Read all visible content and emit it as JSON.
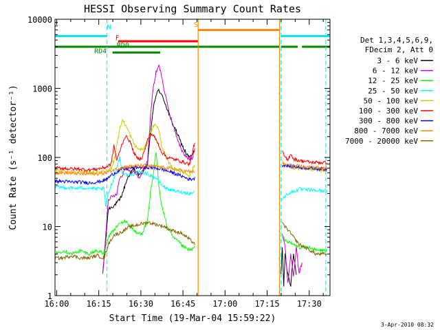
{
  "chart_data": {
    "type": "line",
    "title": "HESSI Observing Summary Count Rates",
    "xlabel": "Start Time (19-Mar-04 15:59:22)",
    "ylabel": "Count Rate (s⁻¹ detector⁻¹)",
    "ylog": true,
    "ylim": [
      1,
      10000
    ],
    "xlim_minutes": [
      0,
      98
    ],
    "x_ticks": [
      "16:00",
      "16:15",
      "16:30",
      "16:45",
      "17:00",
      "17:15",
      "17:30"
    ],
    "y_ticks": [
      "1",
      "10",
      "100",
      "1000",
      "10000"
    ],
    "legend_header": [
      "Det 1,3,4,5,6,9,",
      "FDecim 2, Att 0"
    ],
    "legend_position": "right",
    "date_stamp": "3-Apr-2010 08:32",
    "series": [
      {
        "name": "3 - 6 keV",
        "color": "#000000",
        "x": [
          17,
          19,
          21,
          22,
          23,
          24,
          25,
          26,
          27,
          28,
          29,
          30,
          31,
          32,
          33,
          34,
          35,
          36,
          37,
          38,
          39,
          40,
          41,
          42,
          43,
          44,
          45,
          46,
          47,
          48,
          49,
          50,
          80.5,
          81,
          81.5,
          82,
          83,
          84,
          85,
          86
        ],
        "y": [
          2,
          18,
          20,
          22,
          24,
          30,
          40,
          52,
          60,
          68,
          62,
          55,
          60,
          70,
          80,
          220,
          500,
          800,
          950,
          800,
          650,
          500,
          380,
          300,
          250,
          200,
          160,
          130,
          110,
          100,
          110,
          130,
          2,
          5,
          1.3,
          4,
          2,
          1.4,
          4,
          2
        ]
      },
      {
        "name": "6 - 12 keV",
        "color": "#cc00cc",
        "x": [
          17,
          19,
          21,
          22,
          23,
          24,
          25,
          26,
          27,
          28,
          29,
          30,
          31,
          32,
          33,
          34,
          35,
          36,
          37,
          38,
          39,
          40,
          41,
          42,
          43,
          44,
          45,
          46,
          47,
          48,
          49,
          50,
          81,
          82,
          83,
          84,
          85,
          86,
          87,
          88
        ],
        "y": [
          2,
          25,
          28,
          30,
          50,
          55,
          72,
          65,
          60,
          62,
          58,
          50,
          60,
          70,
          90,
          400,
          1000,
          1700,
          2200,
          1500,
          900,
          600,
          400,
          300,
          220,
          170,
          130,
          110,
          100,
          95,
          100,
          150,
          8,
          5,
          1.5,
          4,
          2,
          5,
          2,
          3
        ]
      },
      {
        "name": "12 - 25 keV",
        "color": "#00ff00",
        "x": [
          0,
          3,
          6,
          9,
          12,
          15,
          17.5,
          19,
          21,
          23,
          25,
          27,
          29,
          31,
          33,
          34,
          35,
          36,
          37,
          38,
          40,
          42,
          44,
          46,
          48,
          50,
          81,
          83,
          85,
          87,
          89,
          91,
          93,
          95,
          97
        ],
        "y": [
          4,
          4.5,
          4,
          4.5,
          4,
          4.5,
          4,
          7,
          9,
          11,
          12,
          10,
          8,
          8,
          12,
          30,
          55,
          120,
          40,
          20,
          10,
          7,
          6,
          5,
          4.5,
          5,
          7,
          6,
          5.5,
          5,
          5,
          5,
          4.5,
          4.5,
          4.5
        ]
      },
      {
        "name": "25 - 50 keV",
        "color": "#00ffff",
        "x": [
          0,
          3,
          6,
          9,
          12,
          15,
          17.5,
          18,
          19,
          20,
          21,
          22,
          23,
          24,
          26,
          28,
          30,
          32,
          34,
          35,
          36,
          37,
          38,
          40,
          42,
          44,
          46,
          48,
          50,
          81,
          83,
          85,
          87,
          89,
          91,
          93,
          95,
          97
        ],
        "y": [
          37,
          37,
          36,
          36,
          36,
          35,
          35,
          20,
          30,
          40,
          50,
          70,
          100,
          60,
          55,
          58,
          60,
          60,
          55,
          52,
          50,
          45,
          40,
          35,
          33,
          32,
          31,
          30,
          32,
          25,
          30,
          32,
          35,
          34,
          34,
          33,
          33,
          33
        ]
      },
      {
        "name": "50 - 100 keV",
        "color": "#cccc00",
        "x": [
          0,
          3,
          6,
          9,
          12,
          15,
          18,
          20,
          21,
          22,
          23,
          24,
          25,
          26,
          27,
          28,
          29,
          30,
          31,
          32,
          33,
          34,
          35,
          36,
          37,
          38,
          40,
          42,
          44,
          46,
          48,
          50,
          81,
          82,
          83,
          85,
          87,
          89,
          91,
          93,
          95,
          97
        ],
        "y": [
          65,
          64,
          62,
          62,
          60,
          60,
          62,
          70,
          90,
          150,
          250,
          350,
          300,
          250,
          200,
          160,
          140,
          130,
          130,
          140,
          170,
          230,
          280,
          300,
          250,
          150,
          90,
          70,
          65,
          60,
          55,
          80,
          90,
          80,
          75,
          70,
          70,
          68,
          67,
          66,
          65,
          65
        ]
      },
      {
        "name": "100 - 300 keV",
        "color": "#ff0000",
        "x": [
          0,
          3,
          6,
          9,
          12,
          15,
          18,
          20,
          21,
          22,
          23,
          24,
          25,
          26,
          27,
          28,
          29,
          30,
          31,
          32,
          33,
          34,
          35,
          36,
          37,
          38,
          40,
          42,
          44,
          46,
          48,
          50,
          81,
          82,
          83,
          84,
          85,
          87,
          89,
          91,
          93,
          95,
          97
        ],
        "y": [
          70,
          70,
          68,
          68,
          66,
          68,
          72,
          80,
          150,
          90,
          120,
          160,
          200,
          190,
          160,
          120,
          100,
          95,
          100,
          130,
          180,
          220,
          210,
          180,
          150,
          120,
          100,
          95,
          90,
          85,
          80,
          180,
          120,
          100,
          90,
          115,
          95,
          90,
          88,
          85,
          85,
          84,
          84
        ]
      },
      {
        "name": "300 - 800 keV",
        "color": "#0000ff",
        "x": [
          0,
          3,
          6,
          9,
          12,
          15,
          18,
          20,
          22,
          24,
          26,
          28,
          30,
          32,
          34,
          36,
          38,
          40,
          42,
          44,
          46,
          48,
          50,
          81,
          83,
          85,
          87,
          89,
          91,
          93,
          95,
          97
        ],
        "y": [
          45,
          45,
          44,
          44,
          43,
          44,
          47,
          55,
          62,
          68,
          70,
          71,
          72,
          72,
          72,
          70,
          68,
          64,
          60,
          56,
          52,
          48,
          50,
          78,
          76,
          74,
          72,
          71,
          70,
          69,
          68,
          68
        ]
      },
      {
        "name": "800 - 7000 keV",
        "color": "#ff8800",
        "x": [
          0,
          3,
          6,
          9,
          12,
          15,
          18,
          20,
          22,
          24,
          26,
          28,
          30,
          32,
          34,
          36,
          38,
          40,
          42,
          44,
          46,
          48,
          50,
          81,
          83,
          85,
          87,
          89,
          91,
          93,
          95,
          97
        ],
        "y": [
          60,
          60,
          59,
          58,
          58,
          58,
          60,
          64,
          68,
          72,
          74,
          75,
          76,
          76,
          75,
          74,
          72,
          70,
          68,
          66,
          64,
          62,
          63,
          80,
          78,
          76,
          74,
          73,
          72,
          71,
          70,
          70
        ]
      },
      {
        "name": "7000 - 20000 keV",
        "color": "#886600",
        "x": [
          0,
          3,
          6,
          9,
          12,
          15,
          17.5,
          19,
          21,
          23,
          25,
          27,
          29,
          31,
          33,
          35,
          37,
          39,
          41,
          43,
          45,
          47,
          49,
          50,
          81,
          83,
          85,
          87,
          89,
          91,
          93,
          95,
          97
        ],
        "y": [
          3.5,
          3.5,
          3.8,
          3.5,
          3.5,
          3.8,
          3.5,
          5.5,
          7.5,
          8,
          9,
          10,
          10.5,
          11,
          11.5,
          11,
          10.5,
          10,
          9,
          8.5,
          8,
          7,
          6,
          5.5,
          11,
          9,
          7,
          5.5,
          5,
          4.5,
          4,
          4,
          4
        ]
      }
    ],
    "flags": [
      {
        "label": "N",
        "color": "#00e5ff",
        "y": 5700,
        "segments": [
          [
            0,
            18.5
          ],
          [
            80.5,
            98
          ]
        ],
        "label_x": 18.5,
        "label_y": 7200
      },
      {
        "label": "F",
        "color": "#ff0000",
        "y": 4800,
        "segments": [
          [
            22.5,
            51
          ]
        ],
        "label_x": 21.5,
        "label_y": 5000
      },
      {
        "label": "S",
        "color": "#ff8800",
        "y": 7000,
        "segments": [
          [
            51,
            80
          ]
        ],
        "label_x": 49.5,
        "label_y": 7800
      },
      {
        "label": "RD0",
        "color": "#008800",
        "y": 4000,
        "segments": [
          [
            0,
            80
          ],
          [
            80.5,
            86.5
          ],
          [
            88,
            98
          ]
        ],
        "label_x": 22,
        "label_y": 3900
      },
      {
        "label": "RD4",
        "color": "#008800",
        "y": 3300,
        "segments": [
          [
            20.5,
            37.5
          ]
        ],
        "label_x": 14,
        "label_y": 3200
      }
    ],
    "vlines": [
      {
        "x": 18.5,
        "color": "#00ffff",
        "style": "dashed"
      },
      {
        "x": 80.5,
        "color": "#00ffff",
        "style": "dashed"
      },
      {
        "x": 96.5,
        "color": "#00ffff",
        "style": "dashed"
      },
      {
        "x": 51,
        "color": "#ff8800",
        "style": "solid"
      },
      {
        "x": 80,
        "color": "#ff8800",
        "style": "solid"
      }
    ]
  }
}
